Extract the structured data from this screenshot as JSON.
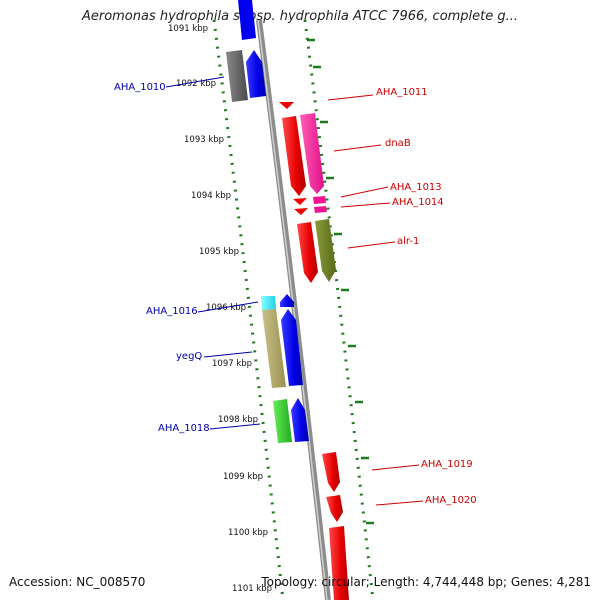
{
  "header": {
    "title": "Aeromonas hydrophila subsp. hydrophila ATCC 7966, complete g..."
  },
  "footer": {
    "accession": "Accession: NC_008570",
    "topology": "Topology: circular; Length: 4,744,448 bp; Genes: 4,281"
  },
  "ticks": [
    {
      "label": "1091 kbp",
      "faded": true
    },
    {
      "label": "1092 kbp"
    },
    {
      "label": "1093 kbp"
    },
    {
      "label": "1094 kbp"
    },
    {
      "label": "1095 kbp"
    },
    {
      "label": "1096 kbp"
    },
    {
      "label": "1097 kbp"
    },
    {
      "label": "1098 kbp"
    },
    {
      "label": "1099 kbp"
    },
    {
      "label": "1100 kbp"
    },
    {
      "label": "1101 kbp"
    }
  ],
  "labels_left": [
    {
      "text": "AHA_1010",
      "color": "#0000aa"
    },
    {
      "text": "AHA_1016",
      "color": "#0000aa"
    },
    {
      "text": "yegQ",
      "color": "#0000aa"
    },
    {
      "text": "AHA_1018",
      "color": "#0000aa"
    }
  ],
  "labels_right": [
    {
      "text": "AHA_1011",
      "color": "#cc0000"
    },
    {
      "text": "dnaB",
      "color": "#cc0000"
    },
    {
      "text": "AHA_1013",
      "color": "#cc0000"
    },
    {
      "text": "AHA_1014",
      "color": "#cc0000"
    },
    {
      "text": "alr-1",
      "color": "#cc0000"
    },
    {
      "text": "AHA_1019",
      "color": "#cc0000"
    },
    {
      "text": "AHA_1020",
      "color": "#cc0000"
    }
  ],
  "colors": {
    "backbone": "#8c8c8c",
    "ruler": "#1f7a1f",
    "forward_cds": "#ee0000",
    "reverse_cds": "#0000ee"
  }
}
